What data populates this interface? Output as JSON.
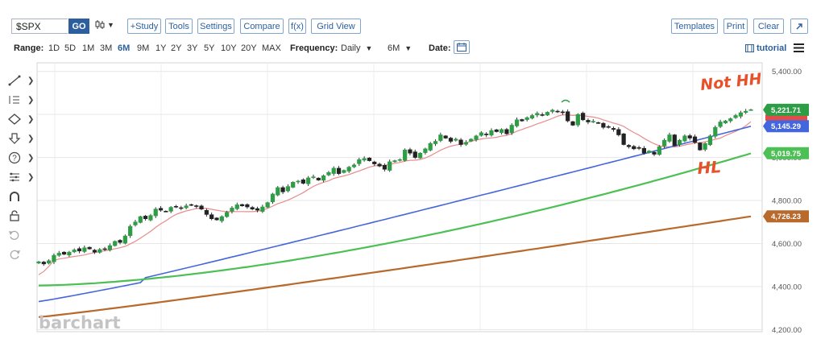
{
  "toolbar": {
    "symbol": "$SPX",
    "go_label": "GO",
    "chart_type_icon": "candlestick-icon",
    "buttons": {
      "study": "+Study",
      "tools": "Tools",
      "settings": "Settings",
      "compare": "Compare",
      "fx": "f(x)",
      "grid_view": "Grid View",
      "templates": "Templates",
      "print": "Print",
      "clear": "Clear"
    }
  },
  "rangebar": {
    "range_label": "Range:",
    "ranges": [
      "1D",
      "5D",
      "1M",
      "3M",
      "6M",
      "9M",
      "1Y",
      "2Y",
      "3Y",
      "5Y",
      "10Y",
      "20Y",
      "MAX"
    ],
    "active_range": "6M",
    "frequency_label": "Frequency:",
    "frequency_value": "Daily",
    "period_value": "6M",
    "date_label": "Date:",
    "tutorial_label": "tutorial"
  },
  "draw_tools": [
    "trendline-icon",
    "fibonacci-icon",
    "shapes-icon",
    "arrow-down-icon",
    "help-icon",
    "pitchfork-icon",
    "magnet-icon",
    "lock-icon",
    "undo-icon",
    "redo-icon"
  ],
  "brand": "barchart",
  "annotations": {
    "top": "Not HH",
    "bottom": "HL",
    "color": "#e8502a"
  },
  "colors": {
    "up": "#2e9e46",
    "down": "#222222",
    "ma_red": "#e88c8c",
    "ma_blue": "#4466dd",
    "ma_green": "#4cbf55",
    "ma_brown": "#b8692c",
    "accent": "#2c5f9e"
  },
  "chart_data": {
    "type": "candlestick",
    "symbol": "$SPX",
    "frequency": "daily",
    "y_ticks": [
      "5,400.00",
      "5,200.00",
      "5,000.00",
      "4,800.00",
      "4,600.00",
      "4,400.00",
      "4,200.00"
    ],
    "ylim": [
      4190,
      5440
    ],
    "price_labels": [
      {
        "value": "5,221.71",
        "color": "#2e9e46"
      },
      {
        "value": "5,145.29",
        "color": "#4466dd"
      },
      {
        "value": "5,019.75",
        "color": "#4cbf55"
      },
      {
        "value": "4,726.23",
        "color": "#b8692c"
      }
    ],
    "close": [
      4515,
      4505,
      4520,
      4545,
      4555,
      4550,
      4560,
      4570,
      4565,
      4580,
      4575,
      4560,
      4572,
      4575,
      4590,
      4610,
      4605,
      4635,
      4680,
      4700,
      4725,
      4715,
      4730,
      4760,
      4755,
      4750,
      4768,
      4770,
      4765,
      4775,
      4778,
      4772,
      4760,
      4735,
      4715,
      4710,
      4725,
      4745,
      4765,
      4780,
      4775,
      4770,
      4760,
      4755,
      4770,
      4790,
      4830,
      4860,
      4840,
      4865,
      4885,
      4890,
      4880,
      4905,
      4910,
      4895,
      4915,
      4930,
      4950,
      4925,
      4940,
      4955,
      4965,
      4990,
      4995,
      4985,
      4970,
      4960,
      4945,
      4980,
      4985,
      4990,
      5035,
      5020,
      5000,
      5020,
      5040,
      5065,
      5075,
      5105,
      5090,
      5075,
      5085,
      5060,
      5070,
      5085,
      5100,
      5115,
      5105,
      5125,
      5120,
      5130,
      5110,
      5150,
      5175,
      5170,
      5185,
      5195,
      5205,
      5198,
      5210,
      5220,
      5212,
      5208,
      5170,
      5150,
      5200,
      5175,
      5165,
      5168,
      5160,
      5140,
      5140,
      5130,
      5105,
      5060,
      5050,
      5040,
      5045,
      5020,
      5030,
      5015,
      5050,
      5080,
      5105,
      5055,
      5080,
      5100,
      5090,
      5070,
      5035,
      5065,
      5100,
      5140,
      5165,
      5170,
      5180,
      5195,
      5208,
      5215,
      5222
    ]
  }
}
